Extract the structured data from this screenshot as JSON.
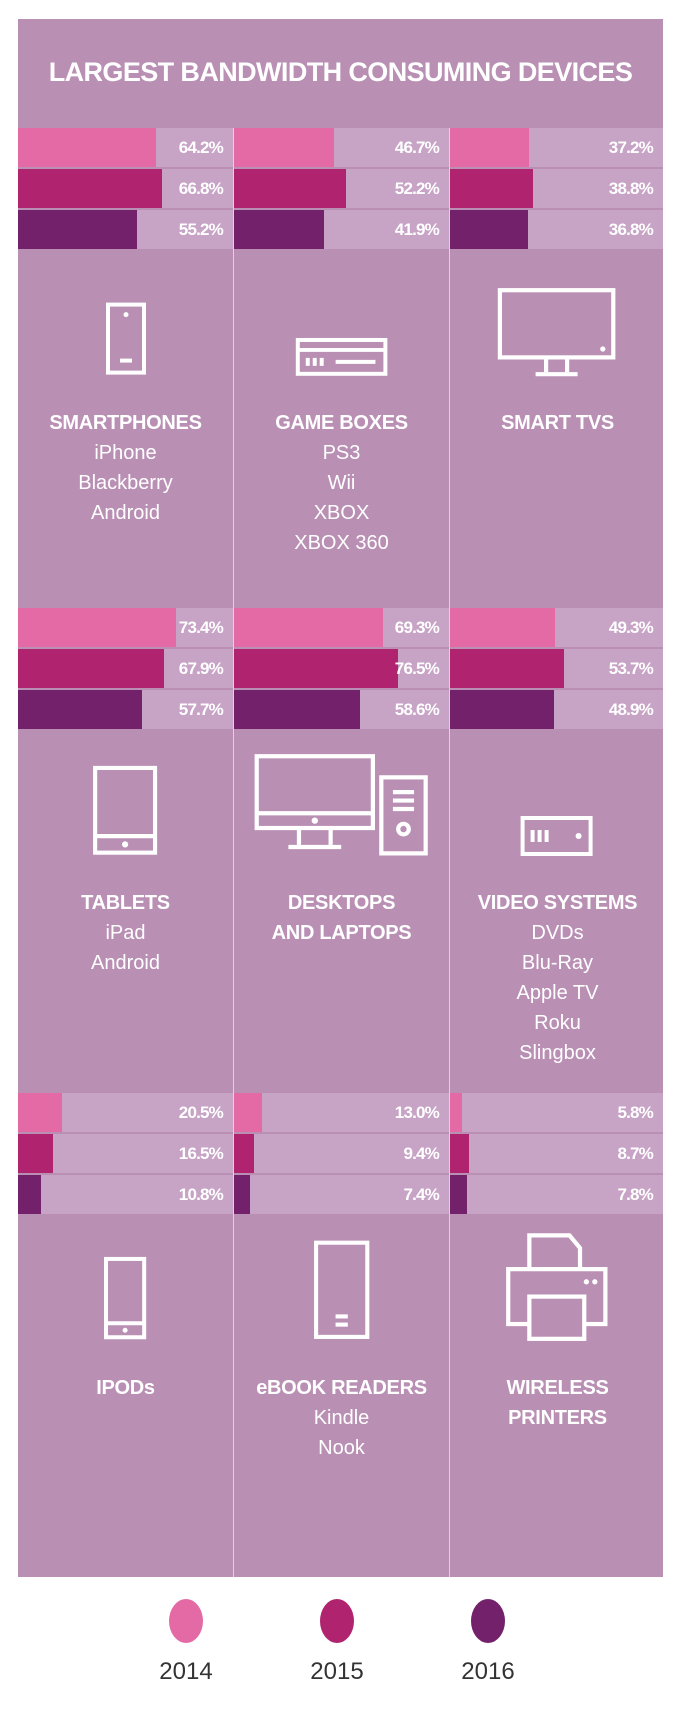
{
  "chart_data": {
    "type": "bar",
    "title": "LARGEST BANDWIDTH CONSUMING DEVICES",
    "series_names": [
      "2014",
      "2015",
      "2016"
    ],
    "colors": {
      "2014": "#e46aa6",
      "2015": "#b0246f",
      "2016": "#73216a",
      "background": "#b98fb4",
      "track": "#c7a3c6"
    },
    "xlim": [
      0,
      100
    ],
    "unit": "%",
    "devices": [
      {
        "name": "SMARTPHONES",
        "examples": [
          "iPhone",
          "Blackberry",
          "Android"
        ],
        "icon": "smartphone-icon",
        "values": [
          64.2,
          66.8,
          55.2
        ],
        "labels": [
          "64.2%",
          "66.8%",
          "55.2%"
        ]
      },
      {
        "name": "GAME BOXES",
        "examples": [
          "PS3",
          "Wii",
          "XBOX",
          "XBOX 360"
        ],
        "icon": "game-console-icon",
        "values": [
          46.7,
          52.2,
          41.9
        ],
        "labels": [
          "46.7%",
          "52.2%",
          "41.9%"
        ]
      },
      {
        "name": "SMART TVS",
        "examples": [],
        "icon": "tv-icon",
        "values": [
          37.2,
          38.8,
          36.8
        ],
        "labels": [
          "37.2%",
          "38.8%",
          "36.8%"
        ]
      },
      {
        "name": "TABLETS",
        "examples": [
          "iPad",
          "Android"
        ],
        "icon": "tablet-icon",
        "values": [
          73.4,
          67.9,
          57.7
        ],
        "labels": [
          "73.4%",
          "67.9%",
          "57.7%"
        ]
      },
      {
        "name": "DESKTOPS AND LAPTOPS",
        "name_lines": [
          "DESKTOPS",
          "AND LAPTOPS"
        ],
        "examples": [],
        "icon": "desktop-computer-icon",
        "values": [
          69.3,
          76.5,
          58.6
        ],
        "labels": [
          "69.3%",
          "76.5%",
          "58.6%"
        ]
      },
      {
        "name": "VIDEO SYSTEMS",
        "examples": [
          "DVDs",
          "Blu-Ray",
          "Apple TV",
          "Roku",
          "Slingbox"
        ],
        "icon": "video-player-icon",
        "values": [
          49.3,
          53.7,
          48.9
        ],
        "labels": [
          "49.3%",
          "53.7%",
          "48.9%"
        ]
      },
      {
        "name": "IPODs",
        "examples": [],
        "icon": "ipod-icon",
        "values": [
          20.5,
          16.5,
          10.8
        ],
        "labels": [
          "20.5%",
          "16.5%",
          "10.8%"
        ]
      },
      {
        "name": "eBOOK READERS",
        "examples": [
          "Kindle",
          "Nook"
        ],
        "icon": "ebook-reader-icon",
        "values": [
          13.0,
          9.4,
          7.4
        ],
        "labels": [
          "13.0%",
          "9.4%",
          "7.4%"
        ]
      },
      {
        "name": "WIRELESS PRINTERS",
        "name_lines": [
          "WIRELESS",
          "PRINTERS"
        ],
        "examples": [],
        "icon": "printer-icon",
        "values": [
          5.8,
          8.7,
          7.8
        ],
        "labels": [
          "5.8%",
          "8.7%",
          "7.8%"
        ]
      }
    ],
    "legend": {
      "placement": "bottom",
      "items": [
        "2014",
        "2015",
        "2016"
      ]
    }
  }
}
